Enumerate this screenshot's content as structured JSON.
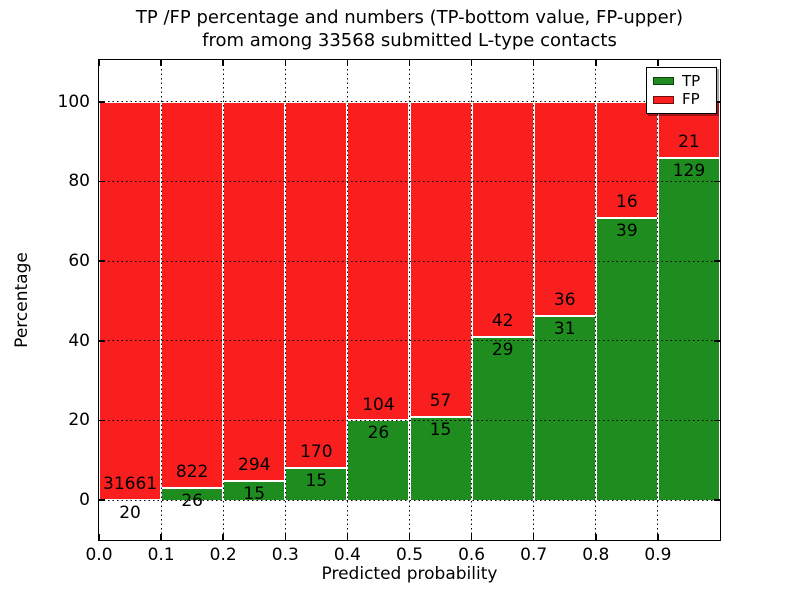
{
  "title": {
    "line1": "TP /FP percentage and numbers (TP-bottom value, FP-upper)",
    "line2": "from among 33568 submitted L-type contacts"
  },
  "chart_data": {
    "type": "bar",
    "stacked": true,
    "normalized_to_percent": true,
    "title": "TP /FP percentage and numbers (TP-bottom value, FP-upper) from among 33568 submitted L-type contacts",
    "xlabel": "Predicted probability",
    "ylabel": "Percentage",
    "total_contacts": 33568,
    "bin_edges": [
      0.0,
      0.1,
      0.2,
      0.3,
      0.4,
      0.5,
      0.6,
      0.7,
      0.8,
      0.9,
      1.0
    ],
    "categories": [
      "0.0-0.1",
      "0.1-0.2",
      "0.2-0.3",
      "0.3-0.4",
      "0.4-0.5",
      "0.5-0.6",
      "0.6-0.7",
      "0.7-0.8",
      "0.8-0.9",
      "0.9-1.0"
    ],
    "series": [
      {
        "name": "TP",
        "color": "#1e8c1e",
        "counts": [
          20,
          26,
          15,
          15,
          26,
          15,
          29,
          31,
          39,
          129
        ]
      },
      {
        "name": "FP",
        "color": "#fa1f1f",
        "counts": [
          31661,
          822,
          294,
          170,
          104,
          57,
          42,
          36,
          16,
          21
        ]
      }
    ],
    "tp_percent_approx": [
      0.06,
      3.07,
      4.85,
      8.11,
      20.0,
      20.83,
      40.85,
      46.27,
      70.91,
      86.0
    ],
    "x_ticks": [
      "0.0",
      "0.1",
      "0.2",
      "0.3",
      "0.4",
      "0.5",
      "0.6",
      "0.7",
      "0.8",
      "0.9"
    ],
    "y_ticks": [
      "0",
      "20",
      "40",
      "60",
      "80",
      "100"
    ],
    "xlim": [
      0.0,
      1.0
    ],
    "ylim": [
      -10,
      110.5
    ],
    "grid": "dotted-black",
    "bar_edge_color": "#ffffff",
    "legend": {
      "position": "upper right",
      "entries": [
        {
          "label": "TP",
          "color": "#1e8c1e"
        },
        {
          "label": "FP",
          "color": "#fa1f1f"
        }
      ]
    }
  }
}
